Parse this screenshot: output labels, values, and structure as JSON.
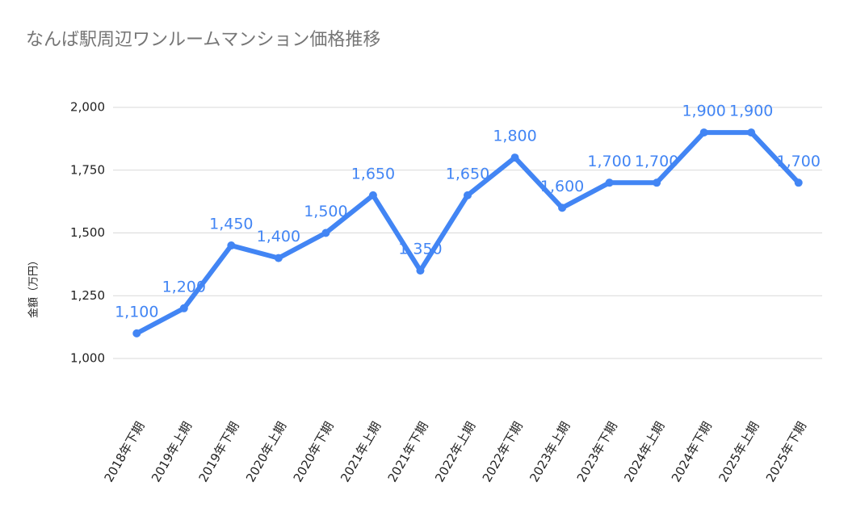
{
  "chart_data": {
    "type": "line",
    "title": "なんば駅周辺ワンルームマンション価格推移",
    "y_label": "金額（万円）",
    "categories": [
      "2018年下期",
      "2019年上期",
      "2019年下期",
      "2020年上期",
      "2020年下期",
      "2021年上期",
      "2021年下期",
      "2022年上期",
      "2022年下期",
      "2023年上期",
      "2023年下期",
      "2024年上期",
      "2024年下期",
      "2025年上期",
      "2025年下期"
    ],
    "values": [
      1100,
      1200,
      1450,
      1400,
      1500,
      1650,
      1350,
      1650,
      1800,
      1600,
      1700,
      1700,
      1900,
      1900,
      1700
    ],
    "value_labels": [
      "1,100",
      "1,200",
      "1,450",
      "1,400",
      "1,500",
      "1,650",
      "1,350",
      "1,650",
      "1,800",
      "1,600",
      "1,700",
      "1,700",
      "1,900",
      "1,900",
      "1,700"
    ],
    "color": "#4285f4",
    "ylim": [
      1000,
      2000
    ],
    "yticks": [
      {
        "value": 1000,
        "label": "1,000"
      },
      {
        "value": 1250,
        "label": "1,250"
      },
      {
        "value": 1500,
        "label": "1,500"
      },
      {
        "value": 1750,
        "label": "1,750"
      },
      {
        "value": 2000,
        "label": "2,000"
      }
    ],
    "grid": true
  }
}
